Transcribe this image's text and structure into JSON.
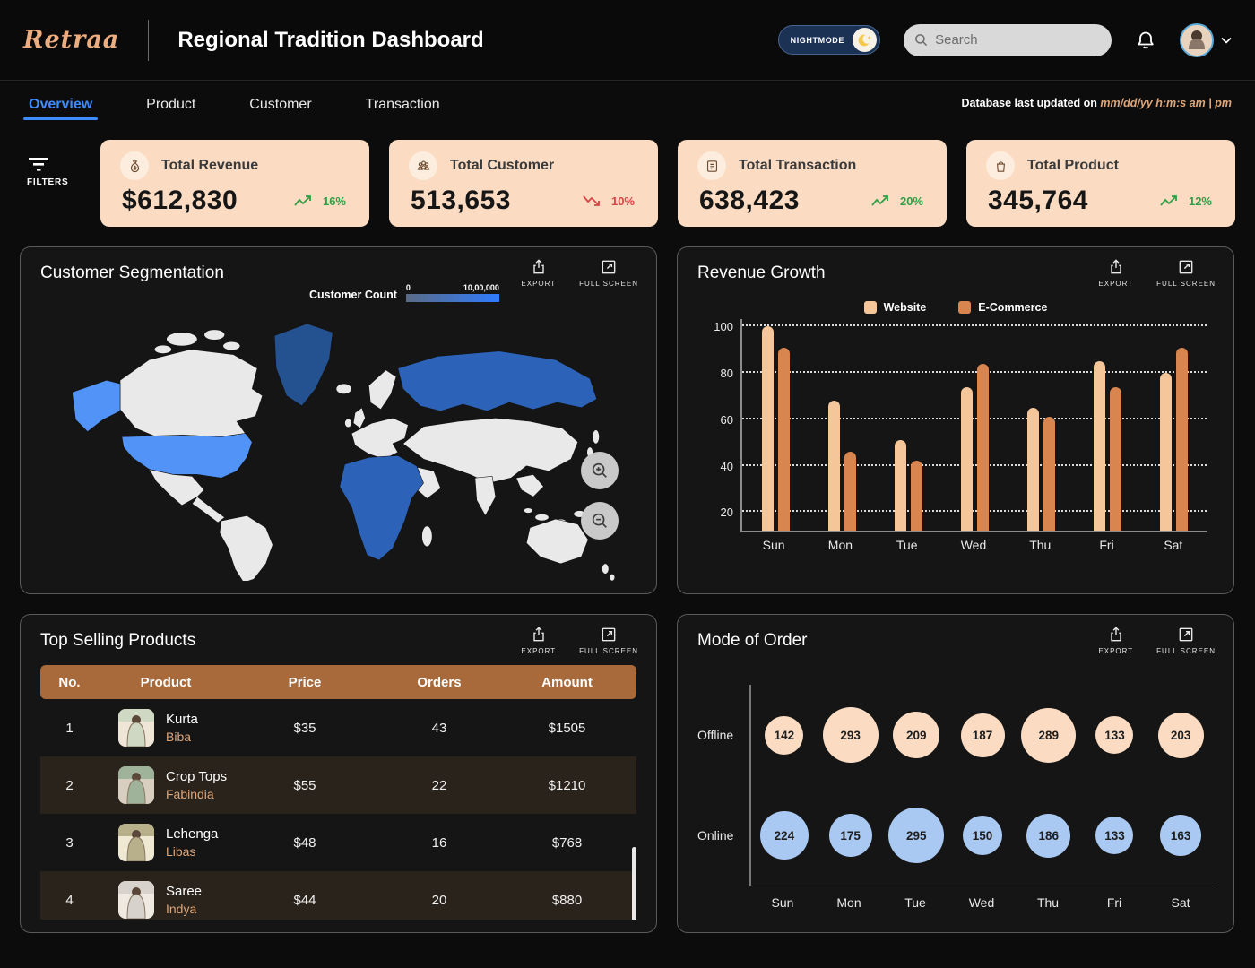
{
  "colors": {
    "bg": "#0C0C0C",
    "logo_tan": "#EDAD7F",
    "accent_blue": "#3D8BFD",
    "card_peach": "#FBDCC3",
    "table_brown": "#A96A3B",
    "stripe_brown": "#2A231B",
    "tan_text": "#DDA77B",
    "green": "#2F9E44",
    "red": "#D64545",
    "bar_light": "#F6C69B",
    "bar_dark": "#D8854F",
    "bubble_peach": "#FBDCC3",
    "bubble_blue": "#A9C8F2",
    "map_gray": "#E9E9E9",
    "map_blue_light": "#5193F6",
    "map_blue_mid": "#2C63B8",
    "map_blue_dark": "#24518F"
  },
  "header": {
    "logo": "Retraa",
    "title": "Regional Tradition Dashboard",
    "nightmode_label": "NIGHTMODE",
    "search_placeholder": "Search"
  },
  "tabs": [
    {
      "label": "Overview",
      "active": true
    },
    {
      "label": "Product",
      "active": false
    },
    {
      "label": "Customer",
      "active": false
    },
    {
      "label": "Transaction",
      "active": false
    }
  ],
  "status": {
    "prefix": "Database last updated on ",
    "value": "mm/dd/yy h:m:s am | pm"
  },
  "filters_label": "FILTERS",
  "kpis": [
    {
      "label": "Total Revenue",
      "value": "$612,830",
      "trend": "16%",
      "direction": "up",
      "icon": "money-bag-icon"
    },
    {
      "label": "Total Customer",
      "value": "513,653",
      "trend": "10%",
      "direction": "down",
      "icon": "customers-icon"
    },
    {
      "label": "Total Transaction",
      "value": "638,423",
      "trend": "20%",
      "direction": "up",
      "icon": "transaction-icon"
    },
    {
      "label": "Total Product",
      "value": "345,764",
      "trend": "12%",
      "direction": "up",
      "icon": "product-bag-icon"
    }
  ],
  "actions": {
    "export": "EXPORT",
    "fullscreen": "FULL SCREEN"
  },
  "panels": {
    "segmentation": {
      "title": "Customer Segmentation",
      "legend_label": "Customer Count",
      "legend_min": "0",
      "legend_max": "10,00,000"
    },
    "revenue": {
      "title": "Revenue Growth"
    },
    "products": {
      "title": "Top Selling Products"
    },
    "orders": {
      "title": "Mode of Order"
    }
  },
  "chart_data": [
    {
      "name": "revenue_growth",
      "type": "bar",
      "title": "Revenue Growth",
      "categories": [
        "Sun",
        "Mon",
        "Tue",
        "Wed",
        "Thu",
        "Fri",
        "Sat"
      ],
      "series": [
        {
          "name": "Website",
          "color": "#F6C69B",
          "values": [
            100,
            68,
            51,
            74,
            65,
            85,
            80
          ]
        },
        {
          "name": "E-Commerce",
          "color": "#D8854F",
          "values": [
            91,
            46,
            42,
            84,
            61,
            74,
            91
          ]
        }
      ],
      "yticks": [
        20,
        40,
        60,
        80,
        100
      ],
      "ylim": [
        12,
        104
      ],
      "grid": "dotted-horizontal",
      "legend_position": "top-center"
    },
    {
      "name": "mode_of_order",
      "type": "scatter",
      "title": "Mode of Order",
      "categories": [
        "Sun",
        "Mon",
        "Tue",
        "Wed",
        "Thu",
        "Fri",
        "Sat"
      ],
      "series": [
        {
          "name": "Offline",
          "color": "#FBDCC3",
          "values": [
            142,
            293,
            209,
            187,
            289,
            133,
            203
          ]
        },
        {
          "name": "Online",
          "color": "#A9C8F2",
          "values": [
            224,
            175,
            295,
            150,
            186,
            133,
            163
          ]
        }
      ],
      "encoding": "bubble diameter proportional to sqrt(value)"
    },
    {
      "name": "customer_segmentation",
      "type": "heatmap",
      "title": "Customer Segmentation",
      "legend": {
        "label": "Customer Count",
        "min": "0",
        "max": "10,00,000"
      },
      "regions": [
        {
          "name": "United States (incl. Alaska)",
          "shade": "light-blue"
        },
        {
          "name": "Greenland",
          "shade": "dark-blue"
        },
        {
          "name": "Russia",
          "shade": "medium-blue"
        },
        {
          "name": "Africa",
          "shade": "medium-blue"
        },
        {
          "name": "Other regions",
          "shade": "gray"
        }
      ]
    }
  ],
  "products_table": {
    "columns": [
      "No.",
      "Product",
      "Price",
      "Orders",
      "Amount"
    ],
    "rows": [
      {
        "no": "1",
        "product": "Kurta",
        "brand": "Biba",
        "price": "$35",
        "orders": "43",
        "amount": "$1505"
      },
      {
        "no": "2",
        "product": "Crop Tops",
        "brand": "Fabindia",
        "price": "$55",
        "orders": "22",
        "amount": "$1210"
      },
      {
        "no": "3",
        "product": "Lehenga",
        "brand": "Libas",
        "price": "$48",
        "orders": "16",
        "amount": "$768"
      },
      {
        "no": "4",
        "product": "Saree",
        "brand": "Indya",
        "price": "$44",
        "orders": "20",
        "amount": "$880"
      }
    ]
  }
}
